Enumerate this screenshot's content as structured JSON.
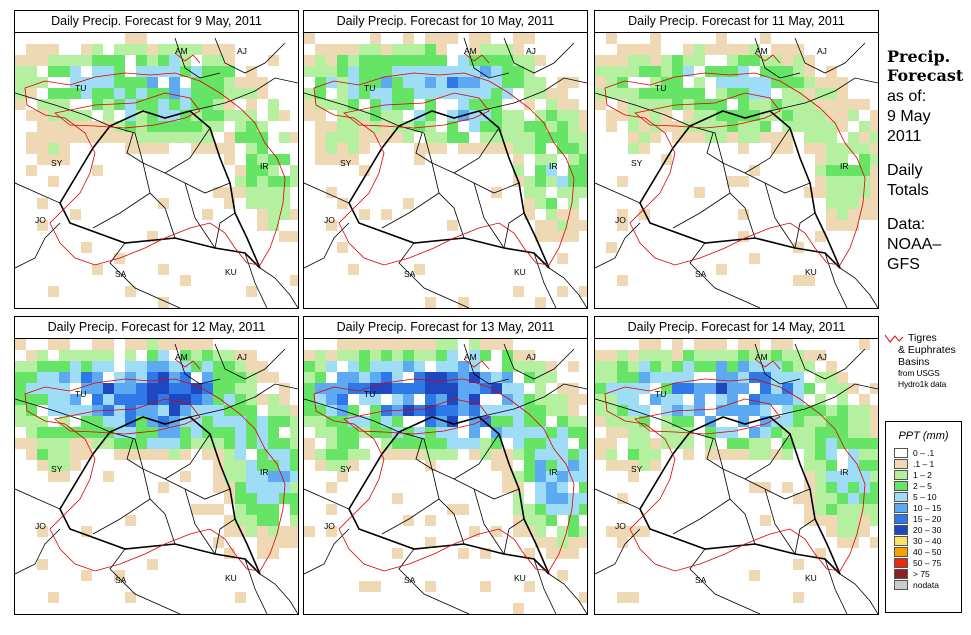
{
  "panels": [
    {
      "title": "Daily Precip. Forecast for  9 May, 2011",
      "seed": 11,
      "wet": 1.0
    },
    {
      "title": "Daily Precip. Forecast for  10 May, 2011",
      "seed": 23,
      "wet": 1.2
    },
    {
      "title": "Daily Precip. Forecast for  11 May, 2011",
      "seed": 37,
      "wet": 0.9
    },
    {
      "title": "Daily Precip. Forecast for  12 May, 2011",
      "seed": 41,
      "wet": 1.7
    },
    {
      "title": "Daily Precip. Forecast for  13 May, 2011",
      "seed": 59,
      "wet": 1.9
    },
    {
      "title": "Daily Precip. Forecast for  14 May, 2011",
      "seed": 71,
      "wet": 1.5
    }
  ],
  "country_labels": {
    "am": "AM",
    "aj": "AJ",
    "tu": "TU",
    "sy": "SY",
    "ir": "IR",
    "jo": "JO",
    "sa": "SA",
    "ku": "KU"
  },
  "sidebar": {
    "title_line1": "Precip.",
    "title_line2": "Forecast",
    "asof_line1": "as of:",
    "asof_line2": "9 May",
    "asof_line3": "2011",
    "totals_line1": "Daily",
    "totals_line2": "Totals",
    "data_line1": "Data:",
    "data_line2": "NOAA–",
    "data_line3": "GFS"
  },
  "basin_note": {
    "label_line1": "Tigres",
    "label_line2": "& Euphrates",
    "label_line3": "Basins",
    "source_line1": "from USGS",
    "source_line2": "Hydro1k data",
    "color": "#dd0000"
  },
  "legend": {
    "title": "PPT (mm)",
    "items": [
      {
        "label": "0 – .1",
        "color": "#ffffff"
      },
      {
        "label": ".1 – 1",
        "color": "#efd9b5"
      },
      {
        "label": "1 – 2",
        "color": "#b4f0a0"
      },
      {
        "label": "2 – 5",
        "color": "#66e466"
      },
      {
        "label": "5 – 10",
        "color": "#9fdcf5"
      },
      {
        "label": "10 – 15",
        "color": "#5eaaf2"
      },
      {
        "label": "15 – 20",
        "color": "#2f78e8"
      },
      {
        "label": "20 – 30",
        "color": "#1f48c0"
      },
      {
        "label": "30 – 40",
        "color": "#fbe36a"
      },
      {
        "label": "40 – 50",
        "color": "#f7a000"
      },
      {
        "label": "50 – 75",
        "color": "#e82c0c"
      },
      {
        "label": "> 75",
        "color": "#8e2222"
      },
      {
        "label": "nodata",
        "color": "#cccccc"
      }
    ]
  }
}
